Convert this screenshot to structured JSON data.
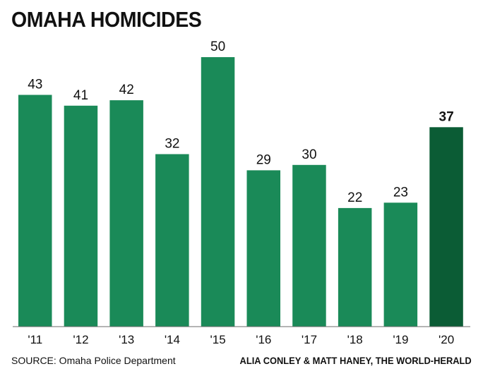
{
  "header": {
    "title": "OMAHA HOMICIDES"
  },
  "footer": {
    "source": "SOURCE: Omaha Police Department",
    "credit": "ALIA CONLEY & MATT HANEY, THE WORLD-HERALD"
  },
  "colors": {
    "bar": "#1a8a58",
    "highlight": "#0b5c35",
    "text": "#111111"
  },
  "chart_data": {
    "type": "bar",
    "title": "OMAHA HOMICIDES",
    "categories": [
      "'11",
      "'12",
      "'13",
      "'14",
      "'15",
      "'16",
      "'17",
      "'18",
      "'19",
      "'20"
    ],
    "values": [
      43,
      41,
      42,
      32,
      50,
      29,
      30,
      22,
      23,
      37
    ],
    "highlight_index": 9,
    "ylim": [
      0,
      50
    ],
    "grid": false,
    "xlabel": "",
    "ylabel": ""
  }
}
